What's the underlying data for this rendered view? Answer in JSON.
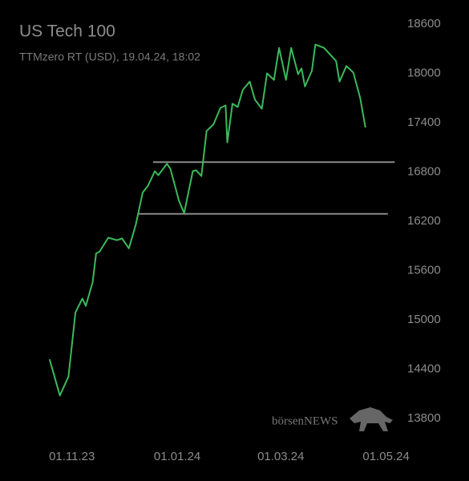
{
  "chart_data": {
    "type": "line",
    "title": "US Tech 100",
    "subtitle": "TTMzero RT (USD), 19.04.24, 18:02",
    "watermark": "börsenNEWS",
    "x": [
      "2023-10-19",
      "2023-10-25",
      "2023-10-30",
      "2023-11-03",
      "2023-11-07",
      "2023-11-09",
      "2023-11-13",
      "2023-11-15",
      "2023-11-17",
      "2023-11-22",
      "2023-11-27",
      "2023-11-30",
      "2023-12-04",
      "2023-12-08",
      "2023-12-12",
      "2023-12-15",
      "2023-12-19",
      "2023-12-21",
      "2023-12-26",
      "2023-12-28",
      "2024-01-02",
      "2024-01-05",
      "2024-01-10",
      "2024-01-12",
      "2024-01-15",
      "2024-01-18",
      "2024-01-22",
      "2024-01-26",
      "2024-01-29",
      "2024-01-30",
      "2024-02-02",
      "2024-02-05",
      "2024-02-08",
      "2024-02-12",
      "2024-02-15",
      "2024-02-19",
      "2024-02-22",
      "2024-02-26",
      "2024-02-29",
      "2024-03-04",
      "2024-03-07",
      "2024-03-11",
      "2024-03-13",
      "2024-03-15",
      "2024-03-19",
      "2024-03-21",
      "2024-03-26",
      "2024-04-02",
      "2024-04-04",
      "2024-04-08",
      "2024-04-12",
      "2024-04-16",
      "2024-04-19"
    ],
    "series": [
      {
        "color": "#3cb95a",
        "values": [
          14520,
          14080,
          14310,
          15090,
          15260,
          15170,
          15460,
          15810,
          15830,
          16000,
          15970,
          15990,
          15870,
          16160,
          16550,
          16630,
          16810,
          16760,
          16900,
          16840,
          16450,
          16300,
          16810,
          16820,
          16750,
          17300,
          17380,
          17580,
          17610,
          17160,
          17630,
          17590,
          17800,
          17900,
          17680,
          17570,
          18000,
          17920,
          18310,
          17920,
          18310,
          17990,
          18060,
          17840,
          18030,
          18350,
          18310,
          18150,
          17900,
          18090,
          18010,
          17700,
          17340
        ]
      }
    ],
    "levels": [
      {
        "value": 16920,
        "start": "2023-12-18",
        "end": "2024-05-06",
        "color": "#8a8a8a"
      },
      {
        "value": 16290,
        "start": "2023-12-09",
        "end": "2024-05-02",
        "color": "#8a8a8a"
      }
    ],
    "xlim": [
      "2023-10-01",
      "2024-05-10"
    ],
    "xticks": [
      {
        "value": "2023-11-01",
        "label": "01.11.23"
      },
      {
        "value": "2024-01-01",
        "label": "01.01.24"
      },
      {
        "value": "2024-03-01",
        "label": "01.03.24"
      },
      {
        "value": "2024-05-01",
        "label": "01.05.24"
      }
    ],
    "ylim": [
      13800,
      18600
    ],
    "yticks": [
      13800,
      14400,
      15000,
      15600,
      16200,
      16800,
      17400,
      18000,
      18600
    ],
    "grid": false
  }
}
